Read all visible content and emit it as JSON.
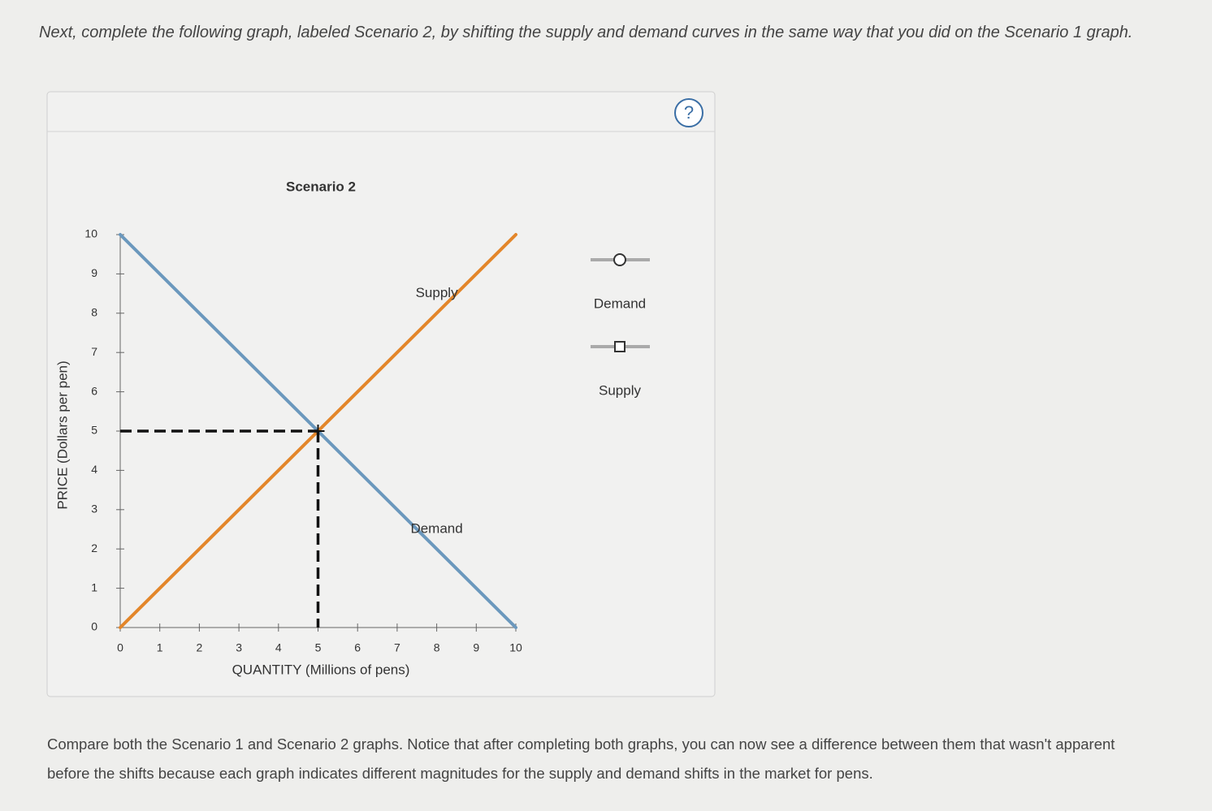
{
  "instructions": "Next, complete the following graph, labeled Scenario 2, by shifting the supply and demand curves in the same way that you did on the Scenario 1 graph.",
  "help_icon": "?",
  "chart_data": {
    "type": "line",
    "title": "Scenario 2",
    "x_label": "QUANTITY (Millions of pens)",
    "y_label": "PRICE (Dollars per pen)",
    "xlim": [
      0,
      10
    ],
    "ylim": [
      0,
      10
    ],
    "xticks": [
      0,
      1,
      2,
      3,
      4,
      5,
      6,
      7,
      8,
      9,
      10
    ],
    "yticks": [
      0,
      1,
      2,
      3,
      4,
      5,
      6,
      7,
      8,
      9,
      10
    ],
    "series": [
      {
        "name": "Demand",
        "color": "#6b98bd",
        "x": [
          0,
          10
        ],
        "values": [
          10,
          0
        ],
        "marker": "circle"
      },
      {
        "name": "Supply",
        "color": "#e3862a",
        "x": [
          0,
          10
        ],
        "values": [
          0,
          10
        ],
        "marker": "square"
      }
    ],
    "equilibrium": {
      "x": 5,
      "y": 5
    }
  },
  "footer": "Compare both the Scenario 1 and Scenario 2 graphs. Notice that after completing both graphs, you can now see a difference between them that wasn't apparent before the shifts because each graph indicates different magnitudes for the supply and demand shifts in the market for pens."
}
